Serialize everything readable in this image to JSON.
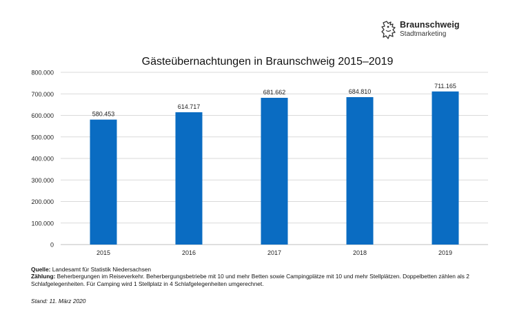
{
  "logo": {
    "name": "Braunschweig",
    "sub": "Stadtmarketing",
    "icon": "lion-crest-icon"
  },
  "chart_data": {
    "type": "bar",
    "title": "Gästeübernachtungen in Braunschweig 2015–2019",
    "categories": [
      "2015",
      "2016",
      "2017",
      "2018",
      "2019"
    ],
    "values": [
      580453,
      614717,
      681662,
      684810,
      711165
    ],
    "value_labels": [
      "580.453",
      "614.717",
      "681.662",
      "684.810",
      "711.165"
    ],
    "ylim": [
      0,
      800000
    ],
    "yticks": [
      0,
      100000,
      200000,
      300000,
      400000,
      500000,
      600000,
      700000,
      800000
    ],
    "ytick_labels": [
      "0",
      "100.000",
      "200.000",
      "300.000",
      "400.000",
      "500.000",
      "600.000",
      "700.000",
      "800.000"
    ],
    "xlabel": "",
    "ylabel": "",
    "grid": true,
    "bar_color": "#0a6cc2",
    "grid_color": "#d9d9d9"
  },
  "footer": {
    "source_label": "Quelle:",
    "source_text": " Landesamt für Statistik Niedersachsen",
    "count_label": "Zählung:",
    "count_text": " Beherbergungen im Reiseverkehr. Beherbergungsbetriebe mit 10 und mehr Betten sowie Campingplätze mit 10 und mehr Stellplätzen. Doppelbetten zählen als 2 Schlafgelegenheiten. Für Camping wird 1 Stellplatz in 4 Schlafgelegenheiten umgerechnet.",
    "stand": "Stand: 11. März 2020"
  }
}
